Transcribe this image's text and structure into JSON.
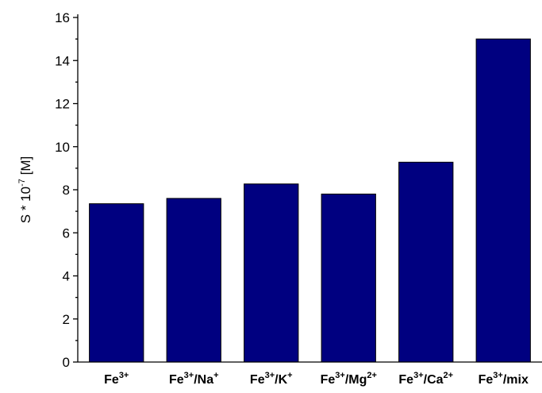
{
  "chart_data": {
    "type": "bar",
    "categories": [
      {
        "base": "Fe",
        "sup1": "3+",
        "sep": "",
        "ion": "",
        "sup2": ""
      },
      {
        "base": "Fe",
        "sup1": "3+",
        "sep": "/",
        "ion": "Na",
        "sup2": "+"
      },
      {
        "base": "Fe",
        "sup1": "3+",
        "sep": "/",
        "ion": "K",
        "sup2": "+"
      },
      {
        "base": "Fe",
        "sup1": "3+",
        "sep": "/",
        "ion": "Mg",
        "sup2": "2+"
      },
      {
        "base": "Fe",
        "sup1": "3+",
        "sep": "/",
        "ion": "Ca",
        "sup2": "2+"
      },
      {
        "base": "Fe",
        "sup1": "3+",
        "sep": "/",
        "ion": "mix",
        "sup2": ""
      }
    ],
    "values": [
      7.35,
      7.6,
      8.27,
      7.8,
      9.28,
      15.0
    ],
    "ylabel": {
      "prefix": "S * 10",
      "exp": "-7",
      "suffix": " [M]"
    },
    "ylim": [
      0,
      16
    ],
    "yticks": [
      0,
      2,
      4,
      6,
      8,
      10,
      12,
      14,
      16
    ],
    "bar_color": "#000080",
    "grid": false
  }
}
